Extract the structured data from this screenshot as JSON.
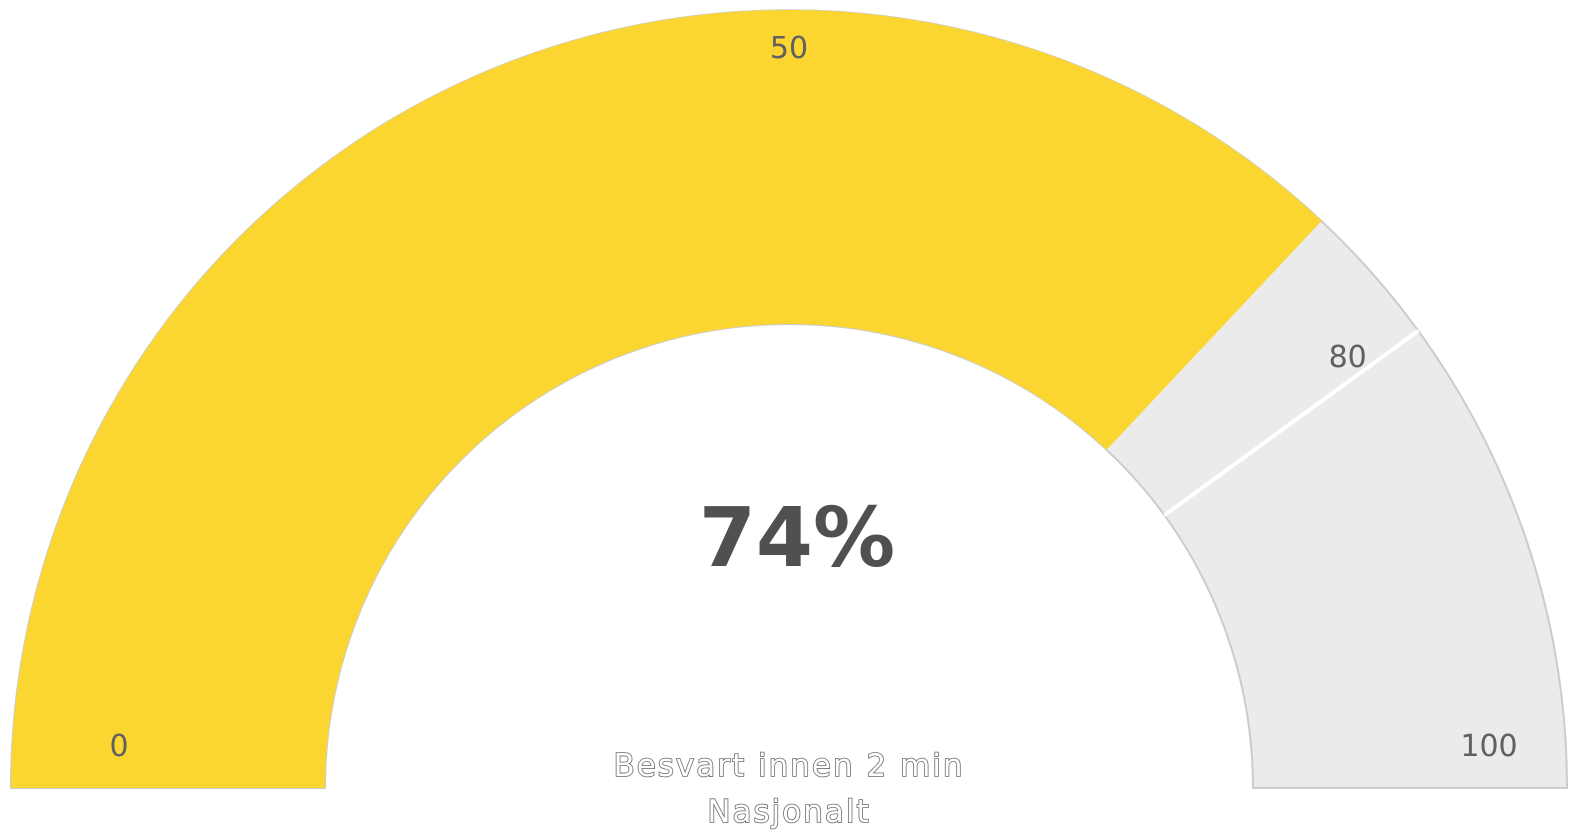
{
  "chart_data": {
    "type": "gauge",
    "value": 74,
    "value_label": "74%",
    "min": 0,
    "max": 100,
    "ticks": [
      {
        "value": 0,
        "label": "0"
      },
      {
        "value": 50,
        "label": "50"
      },
      {
        "value": 80,
        "label": "80"
      },
      {
        "value": 100,
        "label": "100"
      }
    ],
    "threshold": 80,
    "caption_lines": [
      "Besvart innen 2 min",
      "Nasjonalt"
    ],
    "colors": {
      "fill": "#FBD630",
      "track": "#EBEBEB",
      "outline": "#CCCCCC",
      "threshold_line": "#FFFFFF"
    }
  }
}
